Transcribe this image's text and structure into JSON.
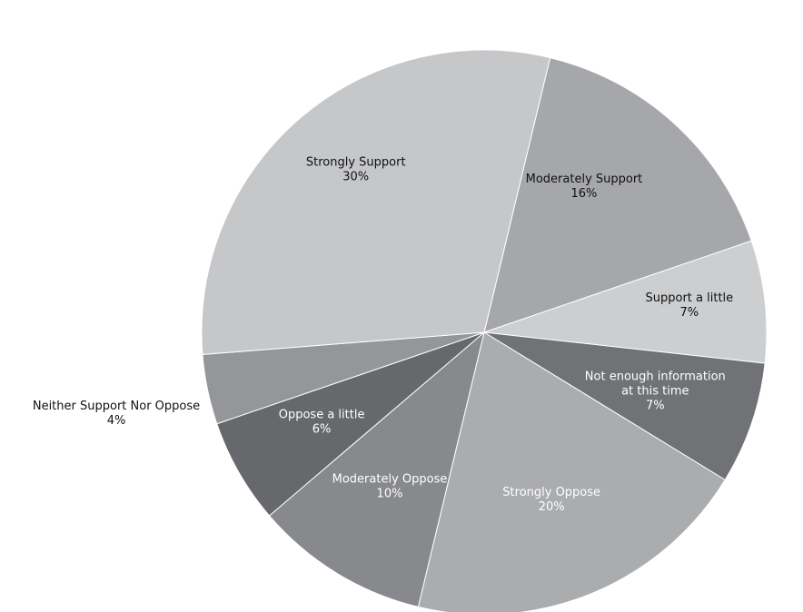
{
  "chart_data": {
    "type": "pie",
    "title": "",
    "slices": [
      {
        "label": "Moderately Support",
        "value": 16,
        "value_label": "16%",
        "color": "#a6a7aa",
        "text_color": "#111111"
      },
      {
        "label": "Support a little",
        "value": 7,
        "value_label": "7%",
        "color": "#cdced0",
        "text_color": "#111111"
      },
      {
        "label": "Not enough information at this time",
        "label_lines": [
          "Not enough information",
          "at this time"
        ],
        "value": 7,
        "value_label": "7%",
        "color": "#707275",
        "text_color": "#ffffff"
      },
      {
        "label": "Strongly Oppose",
        "value": 20,
        "value_label": "20%",
        "color": "#abacae",
        "text_color": "#ffffff"
      },
      {
        "label": "Moderately Oppose",
        "value": 10,
        "value_label": "10%",
        "color": "#88898c",
        "text_color": "#ffffff"
      },
      {
        "label": "Oppose a little",
        "value": 6,
        "value_label": "6%",
        "color": "#67686b",
        "text_color": "#ffffff"
      },
      {
        "label": "Neither Support Nor Oppose",
        "value": 4,
        "value_label": "4%",
        "color": "#959699",
        "text_color": "#111111",
        "outside": true
      },
      {
        "label": "Strongly Support",
        "value": 30,
        "value_label": "30%",
        "color": "#c6c7c9",
        "text_color": "#111111"
      }
    ]
  }
}
